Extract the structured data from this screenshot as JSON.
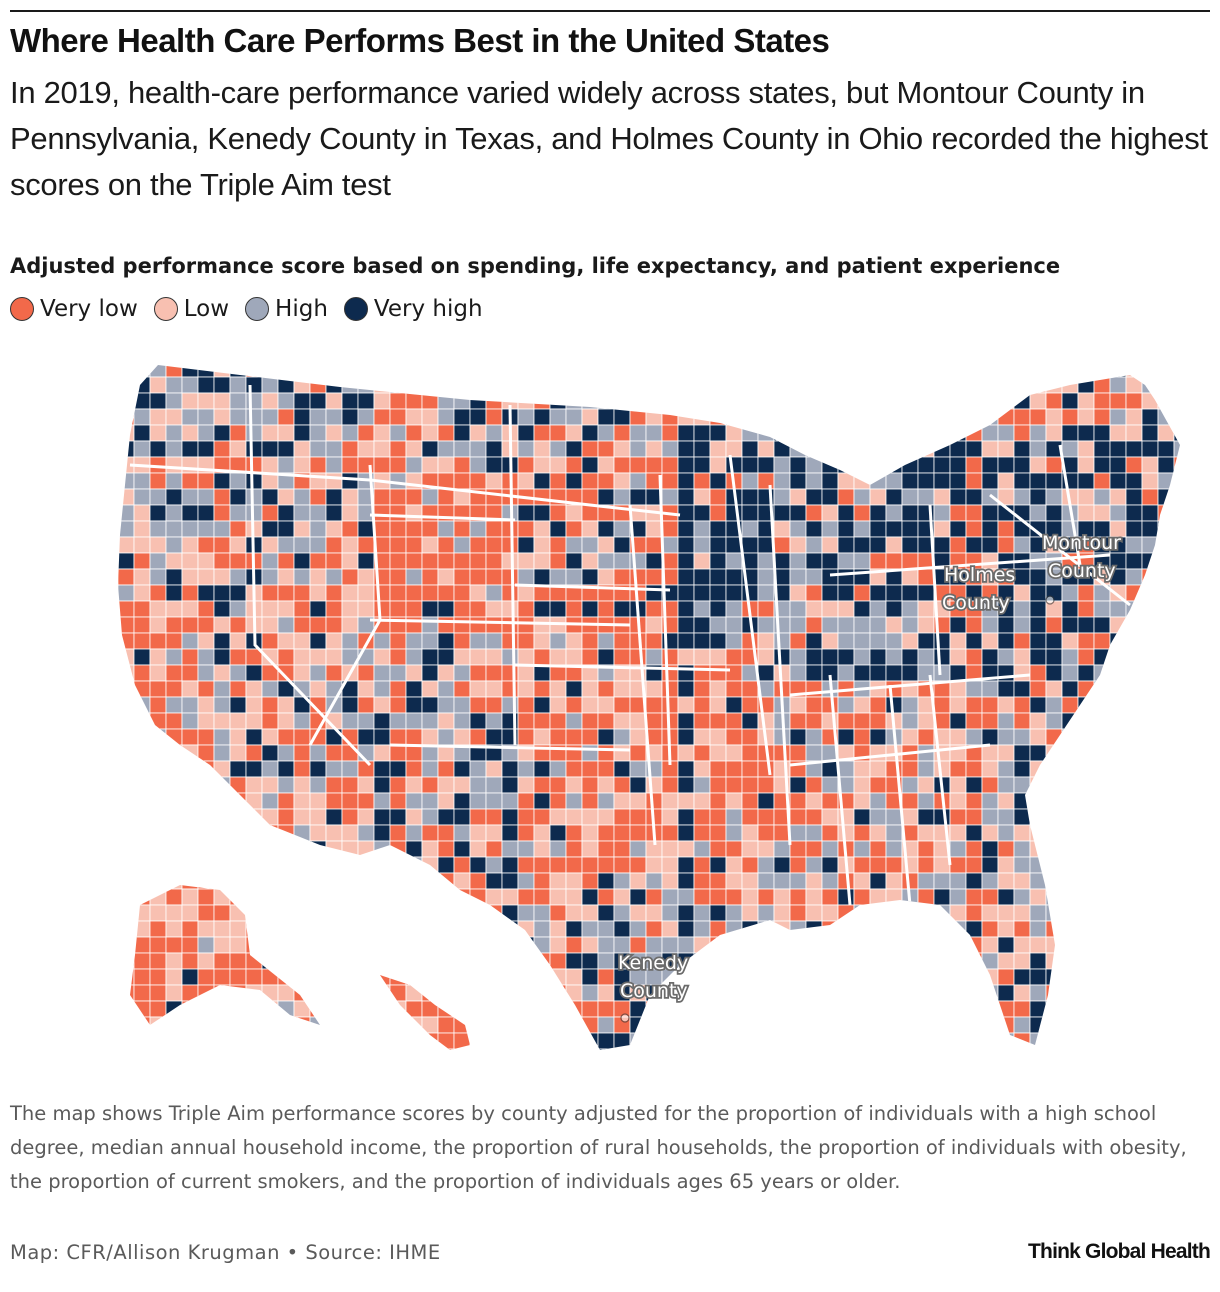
{
  "title": "Where Health Care Performs Best in the United States",
  "subtitle": "In 2019, health-care performance varied widely across states, but Montour County in Pennsylvania, Kenedy County in Texas, and Holmes County in Ohio recorded the highest scores on the Triple Aim test",
  "legend": {
    "title": "Adjusted performance score based on spending, life expectancy, and patient experience",
    "items": [
      {
        "label": "Very low",
        "color": "#f2694a"
      },
      {
        "label": "Low",
        "color": "#f8c0b1"
      },
      {
        "label": "High",
        "color": "#9fa8ba"
      },
      {
        "label": "Very high",
        "color": "#0d2a4e"
      }
    ]
  },
  "map": {
    "type": "choropleth",
    "geography": "US counties",
    "annotations": [
      {
        "line1": "Montour",
        "line2": "County"
      },
      {
        "line1": "Holmes",
        "line2": "County"
      },
      {
        "line1": "Kenedy",
        "line2": "County"
      }
    ]
  },
  "note": "The map shows Triple Aim performance scores by county adjusted for the proportion of individuals with a high school degree, median annual household income, the proportion of rural households, the proportion of individuals with obesity, the proportion of current smokers, and the proportion of individuals ages 65 years or older.",
  "credit": "Map: CFR/Allison Krugman • Source: IHME",
  "brand": "Think Global Health"
}
